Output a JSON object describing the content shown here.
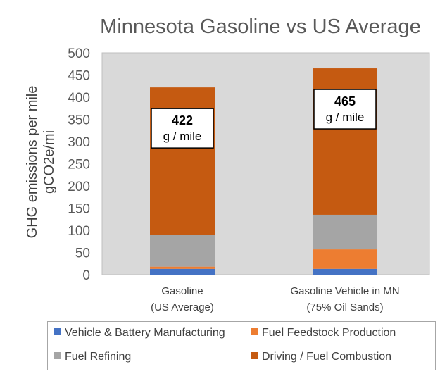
{
  "chart_data": {
    "type": "bar",
    "stacked": true,
    "title": "Minnesota Gasoline vs US Average",
    "ylabel_line1": "GHG emissions per mile",
    "ylabel_line2": "gCO2e/mi",
    "xlabel": "",
    "ylim": [
      0,
      500
    ],
    "yticks": [
      "0",
      "50",
      "100",
      "150",
      "200",
      "250",
      "300",
      "350",
      "400",
      "450",
      "500"
    ],
    "grid": false,
    "legend_position": "bottom",
    "categories": [
      {
        "line1": "Gasoline",
        "line2": "(US Average)"
      },
      {
        "line1": "Gasoline Vehicle in MN",
        "line2": "(75% Oil Sands)"
      }
    ],
    "series": [
      {
        "name": "Vehicle & Battery Manufacturing",
        "color": "#4472c4",
        "values": [
          13,
          13
        ]
      },
      {
        "name": "Fuel Feedstock Production",
        "color": "#ed7d31",
        "values": [
          5,
          44
        ]
      },
      {
        "name": "Fuel Refining",
        "color": "#a5a5a5",
        "values": [
          72,
          78
        ]
      },
      {
        "name": "Driving / Fuel Combustion",
        "color": "#c55a11",
        "values": [
          332,
          330
        ]
      }
    ],
    "annotations": [
      {
        "value": "422",
        "unit": "g / mile"
      },
      {
        "value": "465",
        "unit": "g / mile"
      }
    ]
  }
}
